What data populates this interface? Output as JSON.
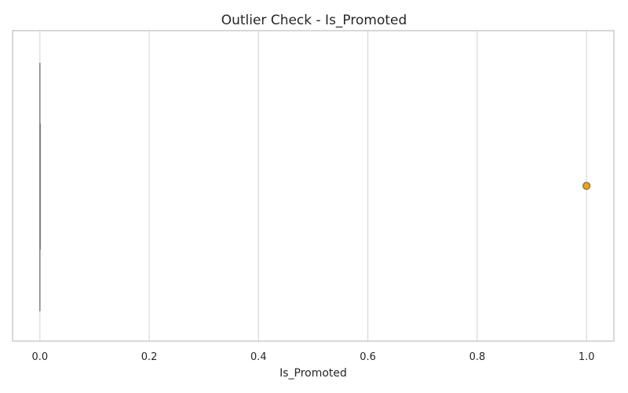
{
  "chart_data": {
    "type": "box",
    "title": "Outlier Check - Is_Promoted",
    "xlabel": "Is_Promoted",
    "ylabel": "",
    "orientation": "horizontal",
    "xlim": [
      -0.05,
      1.05
    ],
    "xticks": [
      0.0,
      0.2,
      0.4,
      0.6,
      0.8,
      1.0
    ],
    "xtick_labels": [
      "0.0",
      "0.2",
      "0.4",
      "0.6",
      "0.8",
      "1.0"
    ],
    "grid": "vertical",
    "box": {
      "whislo": 0.0,
      "q1": 0.0,
      "med": 0.0,
      "q3": 0.0,
      "whishi": 0.0
    },
    "outliers": [
      1.0
    ],
    "colors": {
      "box_edge": "#808080",
      "outlier_fill": "#f5a300",
      "outlier_edge": "#6b6b6b",
      "grid": "#d9d9d9",
      "spine": "#cccccc",
      "text": "#262626"
    }
  }
}
